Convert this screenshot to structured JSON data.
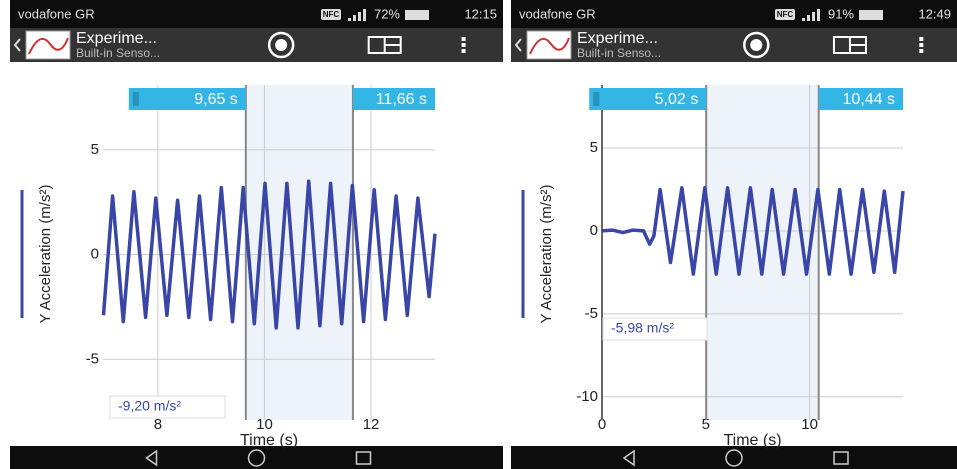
{
  "screens": [
    {
      "carrier": "vodafone GR",
      "nfc": "NFC",
      "battery": "72%",
      "time": "12:15",
      "app_title": "Experime...",
      "app_subtitle": "Built-in Senso..."
    },
    {
      "carrier": "vodafone GR",
      "nfc": "NFC",
      "battery": "91%",
      "time": "12:49",
      "app_title": "Experime...",
      "app_subtitle": "Built-in Senso..."
    }
  ],
  "chart_data": [
    {
      "type": "line",
      "xlabel": "Time (s)",
      "ylabel": "Y Acceleration (m/s²)",
      "color": "#3946a8",
      "grid": true,
      "x": [
        6.98,
        7.15,
        7.35,
        7.55,
        7.77,
        7.96,
        8.17,
        8.37,
        8.58,
        8.78,
        8.99,
        9.19,
        9.4,
        9.6,
        9.81,
        10.01,
        10.22,
        10.42,
        10.63,
        10.83,
        11.04,
        11.24,
        11.45,
        11.65,
        11.86,
        12.06,
        12.27,
        12.47,
        12.68,
        12.88,
        13.09,
        13.2
      ],
      "values": [
        -2.9,
        2.8,
        -3.2,
        3.0,
        -3.0,
        2.7,
        -2.9,
        2.6,
        -3.0,
        2.8,
        -3.1,
        3.2,
        -3.2,
        3.2,
        -3.3,
        3.4,
        -3.5,
        3.4,
        -3.5,
        3.5,
        -3.4,
        3.4,
        -3.3,
        3.3,
        -3.2,
        3.1,
        -3.1,
        2.8,
        -2.9,
        2.7,
        -2.0,
        1.0
      ],
      "xlim": [
        6.97,
        13.2
      ],
      "ylim": [
        -7.9,
        8.1
      ],
      "xticks": [
        8,
        10,
        12
      ],
      "yticks": [
        5,
        0,
        -5
      ],
      "selection": [
        {
          "value": 9.65,
          "label": "9,65 s"
        },
        {
          "value": 11.66,
          "label": "11,66 s"
        }
      ],
      "readout": "-9,20 m/s²"
    },
    {
      "type": "line",
      "xlabel": "Time (s)",
      "ylabel": "Y Acceleration (m/s²)",
      "color": "#3946a8",
      "grid": true,
      "x": [
        0,
        0.5,
        1,
        1.5,
        2,
        2.3,
        2.5,
        2.8,
        3.3,
        3.85,
        4.4,
        4.95,
        5.5,
        6.05,
        6.6,
        7.15,
        7.7,
        8.2,
        8.75,
        9.3,
        9.85,
        10.4,
        10.95,
        11.45,
        12.0,
        12.55,
        13.1,
        13.6,
        14.1,
        14.5
      ],
      "values": [
        0,
        0.05,
        -0.1,
        0.05,
        0,
        -0.8,
        -0.3,
        2.5,
        -1.9,
        2.6,
        -2.6,
        2.6,
        -2.6,
        2.6,
        -2.6,
        2.6,
        -2.6,
        2.5,
        -2.6,
        2.5,
        -2.6,
        2.5,
        -2.6,
        2.5,
        -2.6,
        2.5,
        -2.5,
        2.4,
        -2.5,
        2.4
      ],
      "xlim": [
        0,
        14.5
      ],
      "ylim": [
        -11.4,
        8.8
      ],
      "xticks": [
        0,
        5,
        10
      ],
      "yticks": [
        5,
        0,
        -5,
        -10
      ],
      "selection": [
        {
          "value": 5.02,
          "label": "5,02 s"
        },
        {
          "value": 10.44,
          "label": "10,44 s"
        }
      ],
      "readout": "-5,98 m/s²"
    }
  ]
}
